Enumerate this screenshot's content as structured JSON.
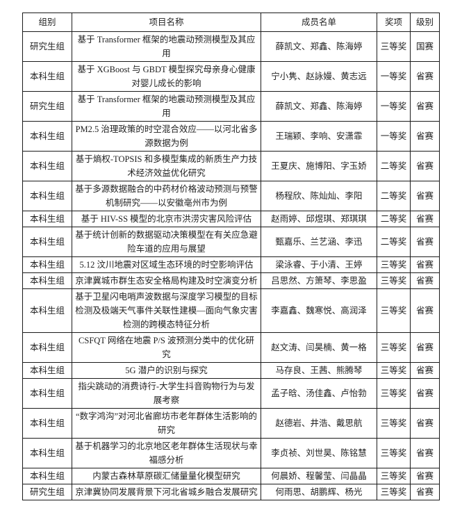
{
  "table": {
    "headers": [
      "组别",
      "项目名称",
      "成员名单",
      "奖项",
      "级别"
    ],
    "rows": [
      {
        "group": "研究生组",
        "project": "基于 Transformer 框架的地震动预测模型及其应用",
        "members": "薛凯文、郑鑫、陈海婷",
        "award": "三等奖",
        "level": "国赛"
      },
      {
        "group": "本科生组",
        "project": "基于 XGBoost 与 GBDT 模型探究母亲身心健康对婴儿成长的影响",
        "members": "宁小隽、赵詠嫚、黄志远",
        "award": "一等奖",
        "level": "省赛"
      },
      {
        "group": "研究生组",
        "project": "基于 Transformer 框架的地震动预测模型及其应用",
        "members": "薛凯文、郑鑫、陈海婷",
        "award": "一等奖",
        "level": "省赛"
      },
      {
        "group": "本科生组",
        "project": "PM2.5 治理政策的时空混合效应——以河北省多源数据为例",
        "members": "王瑞颖、李响、安潇霏",
        "award": "一等奖",
        "level": "省赛"
      },
      {
        "group": "本科生组",
        "project": "基于熵权-TOPSIS 和多模型集成的新质生产力技术经济效益优化研究",
        "members": "王夏庆、施博阳、字玉娇",
        "award": "二等奖",
        "level": "省赛"
      },
      {
        "group": "本科生组",
        "project": "基于多源数据融合的中药材价格波动预测与预警机制研究——以安徽亳州市为例",
        "members": "杨程欣、陈灿灿、李阳",
        "award": "二等奖",
        "level": "省赛"
      },
      {
        "group": "本科生组",
        "project": "基于 HIV-SS 模型的北京市洪涝灾害风险评估",
        "members": "赵雨婷、邱煜琪、郑琪琪",
        "award": "二等奖",
        "level": "省赛"
      },
      {
        "group": "本科生组",
        "project": "基于统计创新的数据驱动决策模型在有关应急避险车道的应用与展望",
        "members": "甄嘉乐、兰艺涵、李迅",
        "award": "二等奖",
        "level": "省赛"
      },
      {
        "group": "本科生组",
        "project": "5.12 汶川地震对区域生态环境的时空影响评估",
        "members": "梁泳睿、于小清、王婷",
        "award": "三等奖",
        "level": "省赛"
      },
      {
        "group": "本科生组",
        "project": "京津冀城市群生态安全格局构建及时空演变分析",
        "members": "吕思然、方箫琴、李思盈",
        "award": "三等奖",
        "level": "省赛"
      },
      {
        "group": "本科生组",
        "project": "基于卫星闪电哨声波数据与深度学习模型的目标检测及极端天气事件关联性建模—面向气象灾害检测的跨模态特征分析",
        "members": "李嘉鑫、魏寒悦、高润泽",
        "award": "三等奖",
        "level": "省赛"
      },
      {
        "group": "本科生组",
        "project": "CSFQT 网络在地震 P/S 波预测分类中的优化研究",
        "members": "赵文涛、闫昊楠、黄一格",
        "award": "三等奖",
        "level": "省赛"
      },
      {
        "group": "本科生组",
        "project": "5G 潜户的识别与探究",
        "members": "马存良、王茜、熊腾琴",
        "award": "三等奖",
        "level": "省赛"
      },
      {
        "group": "本科生组",
        "project": "指尖跳动的消费诗行-大学生抖音购物行为与发展考察",
        "members": "孟子晗、汤佳鑫、卢怡勃",
        "award": "三等奖",
        "level": "省赛"
      },
      {
        "group": "本科生组",
        "project": "“数字鸿沟”对河北省廊坊市老年群体生活影响的研究",
        "members": "赵德岩、井浩、戴思航",
        "award": "三等奖",
        "level": "省赛"
      },
      {
        "group": "本科生组",
        "project": "基于机器学习的北京地区老年群体生活现状与幸福感分析",
        "members": "李贞祯、刘世昊、陈铭慧",
        "award": "三等奖",
        "level": "省赛"
      },
      {
        "group": "本科生组",
        "project": "内蒙古森林草原碳汇储量量化模型研究",
        "members": "何晨娇、程馨莹、闫晶晶",
        "award": "三等奖",
        "level": "省赛"
      },
      {
        "group": "研究生组",
        "project": "京津冀协同发展背景下河北省城乡融合发展研究",
        "members": "何雨思、胡鹏辉、杨光",
        "award": "三等奖",
        "level": "省赛"
      }
    ]
  }
}
